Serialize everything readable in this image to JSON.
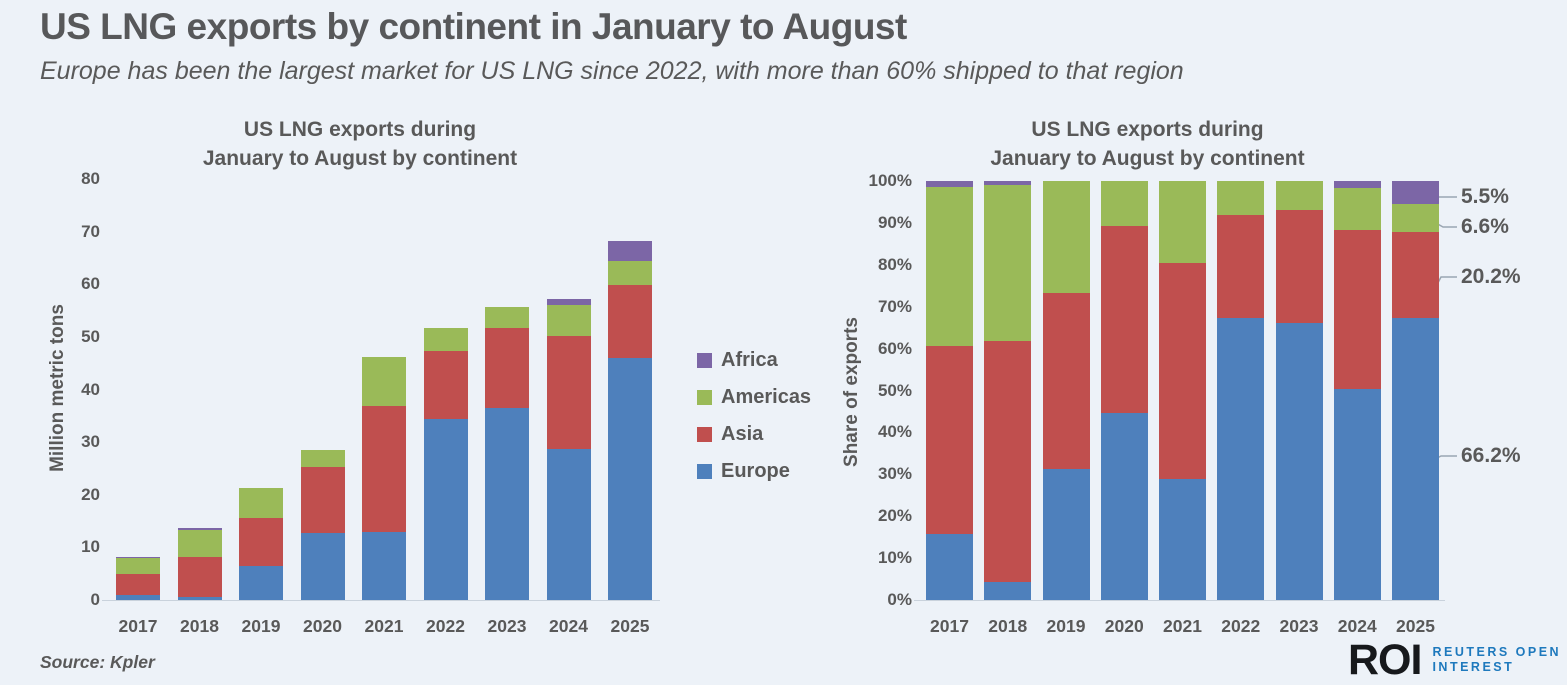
{
  "header": {
    "title": "US LNG exports by continent in January to August",
    "subtitle": "Europe has been the largest market for US LNG since 2022, with more than 60% shipped to that region"
  },
  "colors": {
    "background": "#edf2f8",
    "europe": "#4e80bc",
    "asia": "#c04f4e",
    "americas": "#9aba58",
    "africa": "#7c66a6",
    "text": "#595959",
    "roi_blue": "#1e79bd",
    "roi_dark": "#17191c"
  },
  "legend": {
    "items": [
      {
        "label": "Africa",
        "color": "#7c66a6"
      },
      {
        "label": "Americas",
        "color": "#9aba58"
      },
      {
        "label": "Asia",
        "color": "#c04f4e"
      },
      {
        "label": "Europe",
        "color": "#4e80bc"
      }
    ]
  },
  "chart_data": [
    {
      "type": "bar",
      "stacked": true,
      "title_line1": "US LNG exports during",
      "title_line2": "January to August by continent",
      "ylabel": "Million metric tons",
      "ylim": [
        0,
        80
      ],
      "ytick_values": [
        0,
        10,
        20,
        30,
        40,
        50,
        60,
        70,
        80
      ],
      "ytick_labels": [
        "0",
        "10",
        "20",
        "30",
        "40",
        "50",
        "60",
        "70",
        "80"
      ],
      "categories": [
        "2017",
        "2018",
        "2019",
        "2020",
        "2021",
        "2022",
        "2023",
        "2024",
        "2025"
      ],
      "series": [
        {
          "name": "Europe",
          "color": "#4e80bc",
          "values": [
            1.0,
            0.5,
            6.4,
            12.7,
            13.0,
            34.4,
            36.5,
            28.7,
            46.0
          ]
        },
        {
          "name": "Asia",
          "color": "#c04f4e",
          "values": [
            3.9,
            7.6,
            9.1,
            12.5,
            23.9,
            13.0,
            15.1,
            21.5,
            13.8
          ]
        },
        {
          "name": "Americas",
          "color": "#9aba58",
          "values": [
            3.0,
            5.3,
            5.7,
            3.3,
            9.2,
            4.2,
            4.1,
            5.8,
            4.6
          ]
        },
        {
          "name": "Africa",
          "color": "#7c66a6",
          "values": [
            0.2,
            0.2,
            0,
            0,
            0,
            0,
            0,
            1.2,
            3.8
          ]
        }
      ]
    },
    {
      "type": "bar",
      "stacked": true,
      "percent": true,
      "title_line1": "US LNG exports during",
      "title_line2": "January to August by continent",
      "ylabel": "Share of exports",
      "ylim": [
        0,
        100
      ],
      "ytick_values": [
        0,
        10,
        20,
        30,
        40,
        50,
        60,
        70,
        80,
        90,
        100
      ],
      "ytick_labels": [
        "0%",
        "10%",
        "20%",
        "30%",
        "40%",
        "50%",
        "60%",
        "70%",
        "80%",
        "90%",
        "100%"
      ],
      "categories": [
        "2017",
        "2018",
        "2019",
        "2020",
        "2021",
        "2022",
        "2023",
        "2024",
        "2025"
      ],
      "series": [
        {
          "name": "Europe",
          "color": "#4e80bc",
          "values": [
            15.7,
            4.2,
            31.3,
            44.7,
            29.0,
            67.3,
            66.0,
            50.3,
            66.2
          ]
        },
        {
          "name": "Asia",
          "color": "#c04f4e",
          "values": [
            44.9,
            57.6,
            42.0,
            44.6,
            51.5,
            24.5,
            27.0,
            38.0,
            20.2
          ]
        },
        {
          "name": "Americas",
          "color": "#9aba58",
          "values": [
            37.9,
            37.2,
            26.7,
            10.7,
            19.5,
            8.2,
            7.0,
            10.0,
            6.6
          ]
        },
        {
          "name": "Africa",
          "color": "#7c66a6",
          "values": [
            1.5,
            1.0,
            0,
            0,
            0,
            0,
            0,
            1.7,
            5.5
          ]
        }
      ],
      "annotations": [
        {
          "label": "5.5%",
          "series": "Africa"
        },
        {
          "label": "6.6%",
          "series": "Americas"
        },
        {
          "label": "20.2%",
          "series": "Asia"
        },
        {
          "label": "66.2%",
          "series": "Europe"
        }
      ]
    }
  ],
  "footer": {
    "source": "Source: Kpler",
    "logo": {
      "roi": "ROI",
      "line1": "REUTERS OPEN",
      "line2": "INTEREST"
    }
  }
}
